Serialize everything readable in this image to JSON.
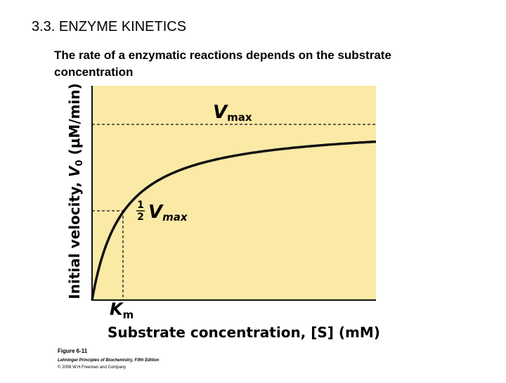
{
  "header": {
    "title": "3.3. ENZYME KINETICS"
  },
  "body": {
    "text": [
      "The rate of a enzymatic reactions depends on the substrate",
      "concentration"
    ]
  },
  "figure": {
    "y_axis_label": [
      "Initial velocity, ",
      "V",
      "0",
      " (μM/min)"
    ],
    "x_axis_label": "Substrate concentration, [S] (mM)",
    "vmax_label": [
      "V",
      "max"
    ],
    "half_vmax_label": [
      "1",
      "2",
      "V",
      "max"
    ],
    "km_label": [
      "K",
      "m"
    ],
    "caption": [
      "Figure 6-11",
      "Lehninger Principles of Biochemistry, Fifth Edition",
      "© 2008 W.H.Freeman and Company"
    ]
  }
}
